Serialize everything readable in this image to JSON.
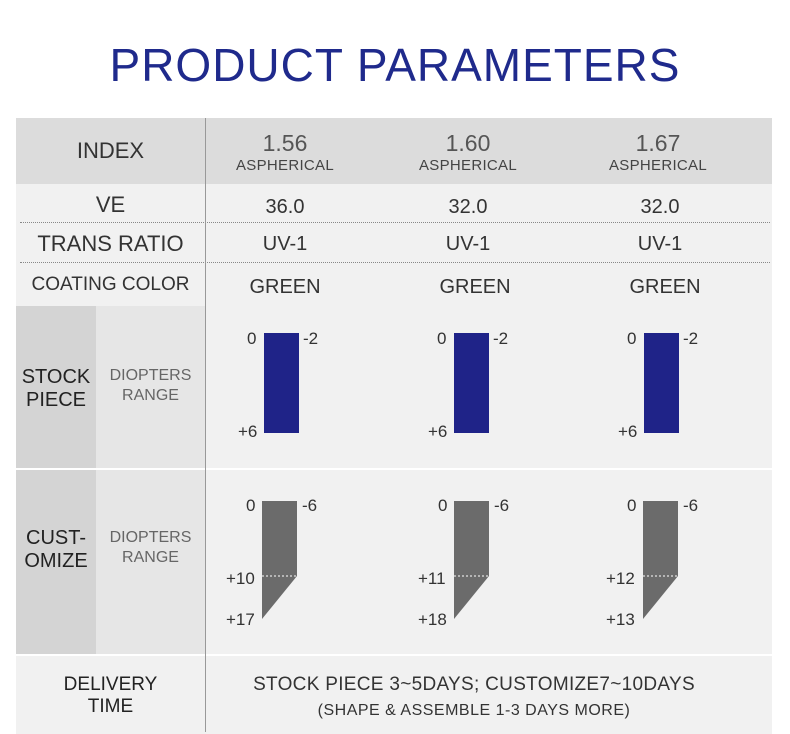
{
  "title": "PRODUCT PARAMETERS",
  "rows": {
    "index": {
      "label": "INDEX",
      "columns": [
        {
          "value": "1.56",
          "sub": "ASPHERICAL"
        },
        {
          "value": "1.60",
          "sub": "ASPHERICAL"
        },
        {
          "value": "1.67",
          "sub": "ASPHERICAL"
        }
      ]
    },
    "ve": {
      "label": "VE",
      "values": [
        "36.0",
        "32.0",
        "32.0"
      ]
    },
    "trans_ratio": {
      "label": "TRANS RATIO",
      "values": [
        "UV-1",
        "UV-1",
        "UV-1"
      ]
    },
    "coating_color": {
      "label": "COATING COLOR",
      "values": [
        "GREEN",
        "GREEN",
        "GREEN"
      ]
    }
  },
  "stock_piece": {
    "label_line1": "STOCK",
    "label_line2": "PIECE",
    "sub_label_line1": "DIOPTERS",
    "sub_label_line2": "RANGE",
    "columns": [
      {
        "top_left": "0",
        "top_right": "-2",
        "bottom": "+6"
      },
      {
        "top_left": "0",
        "top_right": "-2",
        "bottom": "+6"
      },
      {
        "top_left": "0",
        "top_right": "-2",
        "bottom": "+6"
      }
    ]
  },
  "customize": {
    "label_line1": "CUST-",
    "label_line2": "OMIZE",
    "sub_label_line1": "DIOPTERS",
    "sub_label_line2": "RANGE",
    "columns": [
      {
        "top_left": "0",
        "top_right": "-6",
        "mid": "+10",
        "bottom": "+17"
      },
      {
        "top_left": "0",
        "top_right": "-6",
        "mid": "+11",
        "bottom": "+18"
      },
      {
        "top_left": "0",
        "top_right": "-6",
        "mid": "+12",
        "bottom": "+13"
      }
    ]
  },
  "delivery": {
    "label_line1": "DELIVERY",
    "label_line2": "TIME",
    "line1": "STOCK PIECE 3~5DAYS; CUSTOMIZE7~10DAYS",
    "line2": "(SHAPE & ASSEMBLE 1-3 DAYS MORE)"
  },
  "colors": {
    "title": "#1f2a8c",
    "stock_bar": "#1f2388",
    "customize_bar": "#6b6b6b",
    "band_dark": "#dcdcdc",
    "band_light": "#f1f1f1"
  }
}
